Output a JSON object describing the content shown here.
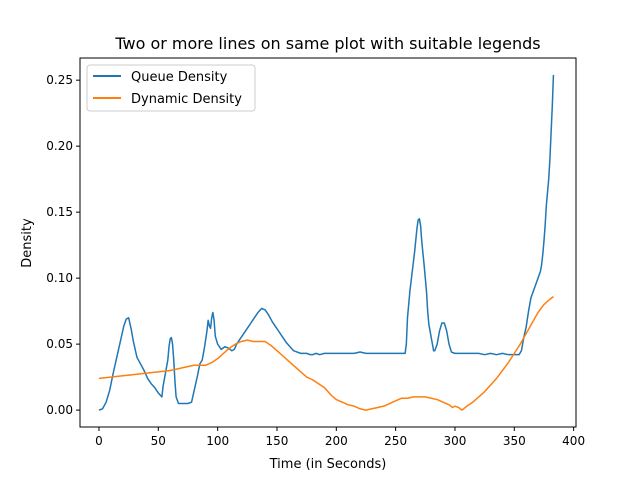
{
  "chart_data": {
    "type": "line",
    "title": "Two or more lines on same plot with suitable legends",
    "xlabel": "Time (in Seconds)",
    "ylabel": "Density",
    "xlim": [
      -16,
      402
    ],
    "ylim": [
      -0.0128,
      0.2668
    ],
    "xticks": [
      0,
      50,
      100,
      150,
      200,
      250,
      300,
      350,
      400
    ],
    "xtick_labels": [
      "0",
      "50",
      "100",
      "150",
      "200",
      "250",
      "300",
      "350",
      "400"
    ],
    "yticks": [
      0.0,
      0.05,
      0.1,
      0.15,
      0.2,
      0.25
    ],
    "ytick_labels": [
      "0.00",
      "0.05",
      "0.10",
      "0.15",
      "0.20",
      "0.25"
    ],
    "grid": false,
    "legend_position": "upper-left",
    "series": [
      {
        "name": "Queue Density",
        "color": "#1f77b4",
        "points": [
          [
            0,
            0.0
          ],
          [
            3,
            0.001
          ],
          [
            6,
            0.006
          ],
          [
            9,
            0.015
          ],
          [
            12,
            0.028
          ],
          [
            15,
            0.04
          ],
          [
            18,
            0.052
          ],
          [
            21,
            0.064
          ],
          [
            23,
            0.069
          ],
          [
            25,
            0.07
          ],
          [
            27,
            0.062
          ],
          [
            29,
            0.052
          ],
          [
            32,
            0.04
          ],
          [
            35,
            0.035
          ],
          [
            38,
            0.03
          ],
          [
            41,
            0.024
          ],
          [
            44,
            0.02
          ],
          [
            47,
            0.017
          ],
          [
            50,
            0.013
          ],
          [
            52,
            0.011
          ],
          [
            53,
            0.01
          ],
          [
            54,
            0.018
          ],
          [
            56,
            0.028
          ],
          [
            58,
            0.038
          ],
          [
            59,
            0.048
          ],
          [
            60,
            0.054
          ],
          [
            61,
            0.055
          ],
          [
            62,
            0.05
          ],
          [
            63,
            0.038
          ],
          [
            64,
            0.022
          ],
          [
            65,
            0.01
          ],
          [
            67,
            0.005
          ],
          [
            70,
            0.005
          ],
          [
            75,
            0.005
          ],
          [
            78,
            0.006
          ],
          [
            79,
            0.01
          ],
          [
            81,
            0.018
          ],
          [
            83,
            0.026
          ],
          [
            85,
            0.035
          ],
          [
            87,
            0.038
          ],
          [
            89,
            0.048
          ],
          [
            91,
            0.06
          ],
          [
            92,
            0.068
          ],
          [
            93,
            0.064
          ],
          [
            94,
            0.062
          ],
          [
            95,
            0.07
          ],
          [
            96,
            0.074
          ],
          [
            97,
            0.068
          ],
          [
            98,
            0.056
          ],
          [
            100,
            0.05
          ],
          [
            103,
            0.046
          ],
          [
            106,
            0.048
          ],
          [
            109,
            0.047
          ],
          [
            112,
            0.045
          ],
          [
            114,
            0.046
          ],
          [
            116,
            0.05
          ],
          [
            119,
            0.054
          ],
          [
            122,
            0.058
          ],
          [
            125,
            0.062
          ],
          [
            128,
            0.066
          ],
          [
            131,
            0.07
          ],
          [
            134,
            0.074
          ],
          [
            137,
            0.077
          ],
          [
            140,
            0.076
          ],
          [
            143,
            0.072
          ],
          [
            146,
            0.067
          ],
          [
            149,
            0.063
          ],
          [
            152,
            0.059
          ],
          [
            155,
            0.055
          ],
          [
            158,
            0.051
          ],
          [
            161,
            0.048
          ],
          [
            164,
            0.045
          ],
          [
            167,
            0.044
          ],
          [
            170,
            0.043
          ],
          [
            175,
            0.043
          ],
          [
            178,
            0.042
          ],
          [
            180,
            0.042
          ],
          [
            183,
            0.043
          ],
          [
            186,
            0.042
          ],
          [
            190,
            0.043
          ],
          [
            200,
            0.043
          ],
          [
            210,
            0.043
          ],
          [
            215,
            0.043
          ],
          [
            220,
            0.044
          ],
          [
            225,
            0.043
          ],
          [
            235,
            0.043
          ],
          [
            245,
            0.043
          ],
          [
            255,
            0.043
          ],
          [
            258,
            0.043
          ],
          [
            259,
            0.05
          ],
          [
            260,
            0.07
          ],
          [
            262,
            0.09
          ],
          [
            264,
            0.105
          ],
          [
            266,
            0.12
          ],
          [
            268,
            0.138
          ],
          [
            269,
            0.144
          ],
          [
            270,
            0.145
          ],
          [
            271,
            0.14
          ],
          [
            272,
            0.128
          ],
          [
            274,
            0.11
          ],
          [
            276,
            0.09
          ],
          [
            277,
            0.075
          ],
          [
            278,
            0.065
          ],
          [
            280,
            0.055
          ],
          [
            282,
            0.045
          ],
          [
            283,
            0.045
          ],
          [
            285,
            0.05
          ],
          [
            287,
            0.06
          ],
          [
            289,
            0.066
          ],
          [
            291,
            0.066
          ],
          [
            293,
            0.06
          ],
          [
            295,
            0.05
          ],
          [
            297,
            0.044
          ],
          [
            300,
            0.043
          ],
          [
            305,
            0.043
          ],
          [
            310,
            0.043
          ],
          [
            315,
            0.043
          ],
          [
            320,
            0.043
          ],
          [
            325,
            0.042
          ],
          [
            330,
            0.043
          ],
          [
            335,
            0.042
          ],
          [
            340,
            0.043
          ],
          [
            345,
            0.042
          ],
          [
            350,
            0.042
          ],
          [
            354,
            0.042
          ],
          [
            356,
            0.045
          ],
          [
            358,
            0.055
          ],
          [
            360,
            0.063
          ],
          [
            362,
            0.075
          ],
          [
            364,
            0.085
          ],
          [
            366,
            0.09
          ],
          [
            368,
            0.095
          ],
          [
            370,
            0.1
          ],
          [
            372,
            0.105
          ],
          [
            373,
            0.11
          ],
          [
            374,
            0.118
          ],
          [
            375,
            0.128
          ],
          [
            376,
            0.14
          ],
          [
            377,
            0.155
          ],
          [
            378,
            0.165
          ],
          [
            379,
            0.175
          ],
          [
            380,
            0.19
          ],
          [
            381,
            0.21
          ],
          [
            382,
            0.23
          ],
          [
            383,
            0.254
          ]
        ]
      },
      {
        "name": "Dynamic Density",
        "color": "#ff7f0e",
        "points": [
          [
            0,
            0.024
          ],
          [
            10,
            0.025
          ],
          [
            20,
            0.026
          ],
          [
            30,
            0.027
          ],
          [
            40,
            0.028
          ],
          [
            50,
            0.029
          ],
          [
            60,
            0.03
          ],
          [
            70,
            0.032
          ],
          [
            80,
            0.034
          ],
          [
            90,
            0.034
          ],
          [
            95,
            0.036
          ],
          [
            100,
            0.039
          ],
          [
            105,
            0.043
          ],
          [
            110,
            0.047
          ],
          [
            115,
            0.05
          ],
          [
            120,
            0.052
          ],
          [
            125,
            0.053
          ],
          [
            130,
            0.052
          ],
          [
            135,
            0.052
          ],
          [
            140,
            0.052
          ],
          [
            145,
            0.049
          ],
          [
            150,
            0.045
          ],
          [
            155,
            0.041
          ],
          [
            160,
            0.037
          ],
          [
            165,
            0.033
          ],
          [
            170,
            0.029
          ],
          [
            175,
            0.025
          ],
          [
            180,
            0.023
          ],
          [
            185,
            0.02
          ],
          [
            190,
            0.017
          ],
          [
            193,
            0.014
          ],
          [
            196,
            0.011
          ],
          [
            200,
            0.008
          ],
          [
            205,
            0.006
          ],
          [
            210,
            0.004
          ],
          [
            215,
            0.003
          ],
          [
            220,
            0.001
          ],
          [
            225,
            0.0
          ],
          [
            230,
            0.001
          ],
          [
            235,
            0.002
          ],
          [
            240,
            0.003
          ],
          [
            245,
            0.005
          ],
          [
            250,
            0.007
          ],
          [
            255,
            0.009
          ],
          [
            260,
            0.009
          ],
          [
            265,
            0.01
          ],
          [
            270,
            0.01
          ],
          [
            275,
            0.01
          ],
          [
            280,
            0.009
          ],
          [
            285,
            0.008
          ],
          [
            290,
            0.006
          ],
          [
            295,
            0.004
          ],
          [
            298,
            0.002
          ],
          [
            300,
            0.003
          ],
          [
            303,
            0.002
          ],
          [
            306,
            0.0
          ],
          [
            310,
            0.003
          ],
          [
            315,
            0.006
          ],
          [
            320,
            0.01
          ],
          [
            325,
            0.014
          ],
          [
            330,
            0.019
          ],
          [
            335,
            0.024
          ],
          [
            340,
            0.03
          ],
          [
            345,
            0.036
          ],
          [
            350,
            0.043
          ],
          [
            355,
            0.05
          ],
          [
            360,
            0.058
          ],
          [
            365,
            0.066
          ],
          [
            370,
            0.074
          ],
          [
            375,
            0.08
          ],
          [
            380,
            0.084
          ],
          [
            383,
            0.086
          ]
        ]
      }
    ]
  }
}
